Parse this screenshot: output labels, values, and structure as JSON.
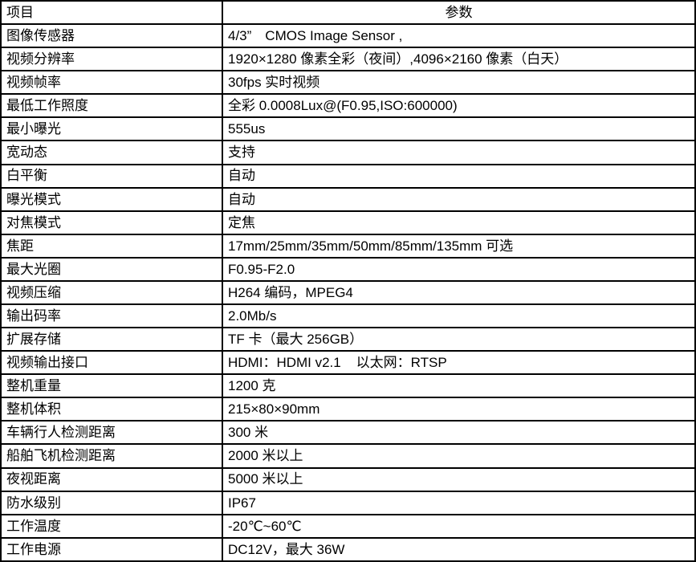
{
  "colors": {
    "background": "#ffffff",
    "border": "#000000",
    "text": "#000000"
  },
  "table": {
    "header": {
      "item_label": "项目",
      "param_label": "参数"
    },
    "rows": [
      {
        "item": "图像传感器",
        "value": "4/3”　CMOS Image Sensor ,"
      },
      {
        "item": "视频分辨率",
        "value": "1920×1280 像素全彩（夜间）,4096×2160 像素（白天）"
      },
      {
        "item": "视频帧率",
        "value": "30fps 实时视频"
      },
      {
        "item": "最低工作照度",
        "value": "全彩 0.0008Lux@(F0.95,ISO:600000)"
      },
      {
        "item": "最小曝光",
        "value": "555us"
      },
      {
        "item": "宽动态",
        "value": "支持"
      },
      {
        "item": "白平衡",
        "value": "自动"
      },
      {
        "item": "曝光模式",
        "value": "自动"
      },
      {
        "item": "对焦模式",
        "value": "定焦"
      },
      {
        "item": "焦距",
        "value": "17mm/25mm/35mm/50mm/85mm/135mm 可选"
      },
      {
        "item": "最大光圈",
        "value": "F0.95-F2.0"
      },
      {
        "item": "视频压缩",
        "value": "H264 编码，MPEG4"
      },
      {
        "item": "输出码率",
        "value": "2.0Mb/s"
      },
      {
        "item": "扩展存储",
        "value": "TF 卡（最大 256GB）"
      },
      {
        "item": "视频输出接口",
        "value": "HDMI：HDMI v2.1    以太网：RTSP"
      },
      {
        "item": "整机重量",
        "value": "1200 克"
      },
      {
        "item": "整机体积",
        "value": "215×80×90mm"
      },
      {
        "item": "车辆行人检测距离",
        "value": "300 米"
      },
      {
        "item": "船舶飞机检测距离",
        "value": "2000 米以上"
      },
      {
        "item": "夜视距离",
        "value": "5000 米以上"
      },
      {
        "item": "防水级别",
        "value": "IP67"
      },
      {
        "item": "工作温度",
        "value": "-20℃~60℃"
      },
      {
        "item": "工作电源",
        "value": "DC12V，最大 36W"
      }
    ]
  }
}
